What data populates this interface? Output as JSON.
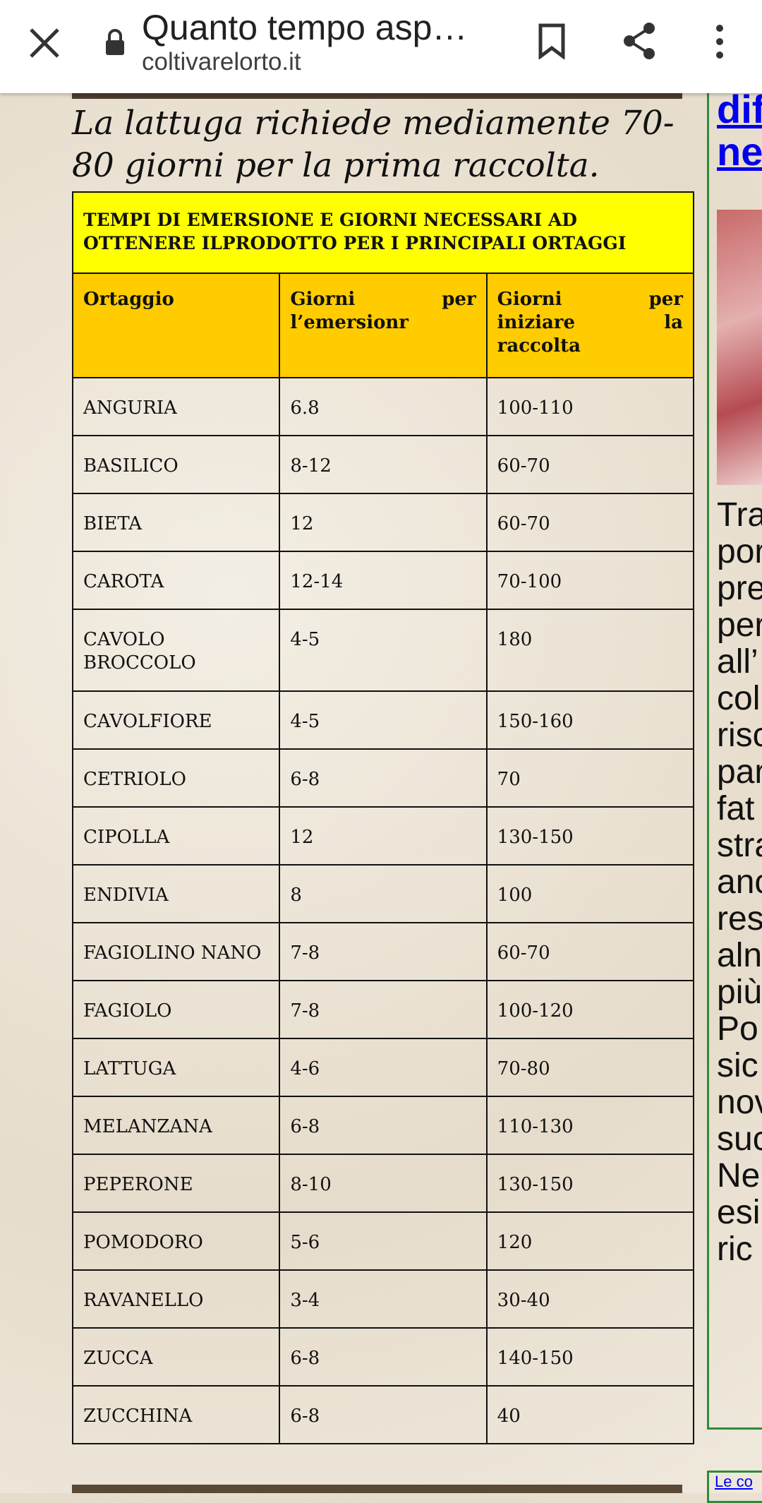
{
  "browser": {
    "title": "Quanto tempo asp…",
    "url": "coltivarelorto.it"
  },
  "article": {
    "intro": "La lattuga richiede mediamente 70-80 giorni per la prima raccolta.",
    "table": {
      "caption": "TEMPI DI EMERSIONE E GIORNI NECESSARI AD OTTENERE ILPRODOTTO PER I PRINCIPALI ORTAGGI",
      "header": [
        "Ortaggio",
        "Giorni per l’emersionr",
        "Giorni per iniziare la raccolta"
      ],
      "rows": [
        [
          "ANGURIA",
          "6.8",
          "100-110"
        ],
        [
          "BASILICO",
          "8-12",
          "60-70"
        ],
        [
          "BIETA",
          "12",
          "60-70"
        ],
        [
          "CAROTA",
          "12-14",
          "70-100"
        ],
        [
          "CAVOLO BROCCOLO",
          "4-5",
          "180"
        ],
        [
          "CAVOLFIORE",
          "4-5",
          "150-160"
        ],
        [
          "CETRIOLO",
          "6-8",
          "70"
        ],
        [
          "CIPOLLA",
          "12",
          "130-150"
        ],
        [
          "ENDIVIA",
          "8",
          "100"
        ],
        [
          "FAGIOLINO NANO",
          "7-8",
          "60-70"
        ],
        [
          "FAGIOLO",
          "7-8",
          "100-120"
        ],
        [
          "LATTUGA",
          "4-6",
          "70-80"
        ],
        [
          "MELANZANA",
          "6-8",
          "110-130"
        ],
        [
          "PEPERONE",
          "8-10",
          "130-150"
        ],
        [
          "POMODORO",
          "5-6",
          "120"
        ],
        [
          "RAVANELLO",
          "3-4",
          "30-40"
        ],
        [
          "ZUCCA",
          "6-8",
          "140-150"
        ],
        [
          "ZUCCHINA",
          "6-8",
          "40"
        ]
      ]
    }
  },
  "sidebar": {
    "link": [
      "dif",
      "ne"
    ],
    "text": [
      "Tra",
      "por",
      "pre",
      "per",
      "all’",
      "col",
      "risc",
      "par",
      "fat",
      "stra",
      "anc",
      "res",
      "aln",
      "più",
      "Po",
      "sic",
      "nov",
      "suc",
      "Ne",
      "esi",
      "ric"
    ],
    "bottom_link": "Le co"
  }
}
